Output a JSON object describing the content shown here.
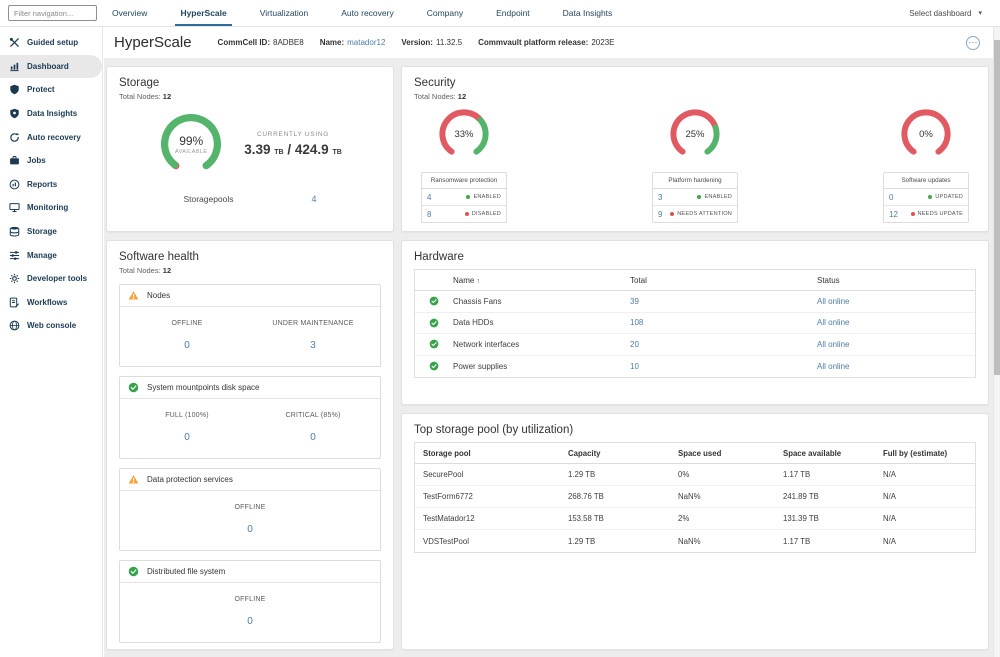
{
  "topnav": {
    "filter_placeholder": "Filter navigation...",
    "tabs": [
      "Overview",
      "HyperScale",
      "Virtualization",
      "Auto recovery",
      "Company",
      "Endpoint",
      "Data Insights"
    ],
    "active_tab": "HyperScale",
    "select_dashboard_label": "Select dashboard"
  },
  "sidebar": {
    "active_item": "Dashboard",
    "items": [
      {
        "label": "Guided setup"
      },
      {
        "label": "Dashboard"
      },
      {
        "label": "Protect"
      },
      {
        "label": "Data Insights"
      },
      {
        "label": "Auto recovery"
      },
      {
        "label": "Jobs"
      },
      {
        "label": "Reports"
      },
      {
        "label": "Monitoring"
      },
      {
        "label": "Storage"
      },
      {
        "label": "Manage"
      },
      {
        "label": "Developer tools"
      },
      {
        "label": "Workflows"
      },
      {
        "label": "Web console"
      }
    ]
  },
  "header": {
    "title": "HyperScale",
    "commcell_id_label": "CommCell ID:",
    "commcell_id": "8ADBE8",
    "name_label": "Name:",
    "name": "matador12",
    "version_label": "Version:",
    "version": "11.32.5",
    "release_label": "Commvault platform release:",
    "release": "2023E"
  },
  "storage_card": {
    "title": "Storage",
    "total_nodes_label": "Total Nodes:",
    "total_nodes": "12",
    "gauge": {
      "pct": 99,
      "value": "99%",
      "caption": "AVAILABLE"
    },
    "currently_using_label": "CURRENTLY USING",
    "used_value": "3.39",
    "used_unit": "TB",
    "separator": "/",
    "total_value": "424.9",
    "total_unit": "TB",
    "storagepools_label": "Storagepools",
    "storagepools_count": "4"
  },
  "security_card": {
    "title": "Security",
    "total_nodes_label": "Total Nodes:",
    "total_nodes": "12",
    "panels": [
      {
        "gauge": {
          "pct": 33,
          "value": "33%"
        },
        "table_title": "Ransomware protection",
        "rows": [
          {
            "count": "4",
            "status": "ENABLED"
          },
          {
            "count": "8",
            "status": "DISABLED"
          }
        ]
      },
      {
        "gauge": {
          "pct": 25,
          "value": "25%"
        },
        "table_title": "Platform hardening",
        "rows": [
          {
            "count": "3",
            "status": "ENABLED"
          },
          {
            "count": "9",
            "status": "NEEDS ATTENTION"
          }
        ]
      },
      {
        "gauge": {
          "pct": 0,
          "value": "0%"
        },
        "table_title": "Software updates",
        "rows": [
          {
            "count": "0",
            "status": "UPDATED"
          },
          {
            "count": "12",
            "status": "NEEDS UPDATE"
          }
        ]
      }
    ]
  },
  "software_health_card": {
    "title": "Software health",
    "total_nodes_label": "Total Nodes:",
    "total_nodes": "12",
    "sections": [
      {
        "title": "Nodes",
        "state": "warning",
        "metrics": [
          {
            "label": "OFFLINE",
            "value": "0"
          },
          {
            "label": "UNDER MAINTENANCE",
            "value": "3"
          }
        ]
      },
      {
        "title": "System mountpoints disk space",
        "state": "ok",
        "metrics": [
          {
            "label": "FULL (100%)",
            "value": "0"
          },
          {
            "label": "CRITICAL (85%)",
            "value": "0"
          }
        ]
      },
      {
        "title": "Data protection services",
        "state": "warning",
        "metrics": [
          {
            "label": "OFFLINE",
            "value": "0"
          }
        ]
      },
      {
        "title": "Distributed file system",
        "state": "ok",
        "metrics": [
          {
            "label": "OFFLINE",
            "value": "0"
          }
        ]
      }
    ]
  },
  "hardware_card": {
    "title": "Hardware",
    "columns": [
      "Name",
      "Total",
      "Status"
    ],
    "rows": [
      {
        "name": "Chassis Fans",
        "total": "39",
        "status": "All online"
      },
      {
        "name": "Data HDDs",
        "total": "108",
        "status": "All online"
      },
      {
        "name": "Network interfaces",
        "total": "20",
        "status": "All online"
      },
      {
        "name": "Power supplies",
        "total": "10",
        "status": "All online"
      }
    ]
  },
  "storage_pool_card": {
    "title": "Top storage pool (by utilization)",
    "columns": [
      "Storage pool",
      "Capacity",
      "Space used",
      "Space available",
      "Full by (estimate)"
    ],
    "rows": [
      [
        "SecurePool",
        "1.29 TB",
        "0%",
        "1.17 TB",
        "N/A"
      ],
      [
        "TestForm6772",
        "268.76 TB",
        "NaN%",
        "241.89 TB",
        "N/A"
      ],
      [
        "TestMatador12",
        "153.58 TB",
        "2%",
        "131.39 TB",
        "N/A"
      ],
      [
        "VDSTestPool",
        "1.29 TB",
        "NaN%",
        "1.17 TB",
        "N/A"
      ]
    ]
  },
  "colors": {
    "accent": "#2c6d9c",
    "link": "#4f7da8",
    "navy": "#1b3a52",
    "gauge-green": "#55b46c",
    "gauge-red": "#e15a62",
    "dot-green": "#43a844",
    "dot-red": "#e05252",
    "warning": "#f2a33c",
    "ok": "#36a34a"
  }
}
